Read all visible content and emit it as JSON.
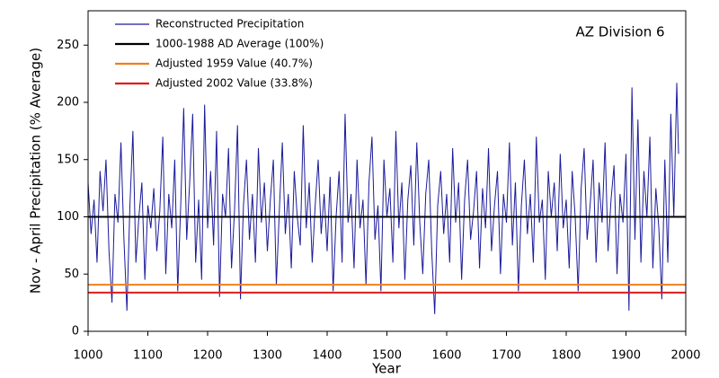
{
  "chart_data": {
    "type": "line",
    "title": "AZ Division 6",
    "x_label": "Year",
    "y_label": "Nov - April Precipitation (% Average)",
    "xlim": [
      1000,
      2000
    ],
    "ylim": [
      0,
      280
    ],
    "xticks": [
      1000,
      1100,
      1200,
      1300,
      1400,
      1500,
      1600,
      1700,
      1800,
      1900,
      2000
    ],
    "yticks": [
      0,
      50,
      100,
      150,
      200,
      250
    ],
    "legend": "upper left",
    "series": [
      {
        "name": "Reconstructed Precipitation",
        "color": "#1a1a9a",
        "x": [
          1000,
          1005,
          1010,
          1015,
          1020,
          1025,
          1030,
          1035,
          1040,
          1045,
          1050,
          1055,
          1060,
          1065,
          1070,
          1075,
          1080,
          1085,
          1090,
          1095,
          1100,
          1105,
          1110,
          1115,
          1120,
          1125,
          1130,
          1135,
          1140,
          1145,
          1150,
          1155,
          1160,
          1165,
          1170,
          1175,
          1180,
          1185,
          1190,
          1195,
          1200,
          1205,
          1210,
          1215,
          1220,
          1225,
          1230,
          1235,
          1240,
          1245,
          1250,
          1255,
          1260,
          1265,
          1270,
          1275,
          1280,
          1285,
          1290,
          1295,
          1300,
          1305,
          1310,
          1315,
          1320,
          1325,
          1330,
          1335,
          1340,
          1345,
          1350,
          1355,
          1360,
          1365,
          1370,
          1375,
          1380,
          1385,
          1390,
          1395,
          1400,
          1405,
          1410,
          1415,
          1420,
          1425,
          1430,
          1435,
          1440,
          1445,
          1450,
          1455,
          1460,
          1465,
          1470,
          1475,
          1480,
          1485,
          1490,
          1495,
          1500,
          1505,
          1510,
          1515,
          1520,
          1525,
          1530,
          1535,
          1540,
          1545,
          1550,
          1555,
          1560,
          1565,
          1570,
          1575,
          1580,
          1585,
          1590,
          1595,
          1600,
          1605,
          1610,
          1615,
          1620,
          1625,
          1630,
          1635,
          1640,
          1645,
          1650,
          1655,
          1660,
          1665,
          1670,
          1675,
          1680,
          1685,
          1690,
          1695,
          1700,
          1705,
          1710,
          1715,
          1720,
          1725,
          1730,
          1735,
          1740,
          1745,
          1750,
          1755,
          1760,
          1765,
          1770,
          1775,
          1780,
          1785,
          1790,
          1795,
          1800,
          1805,
          1810,
          1815,
          1820,
          1825,
          1830,
          1835,
          1840,
          1845,
          1850,
          1855,
          1860,
          1865,
          1870,
          1875,
          1880,
          1885,
          1890,
          1895,
          1900,
          1905,
          1910,
          1915,
          1920,
          1925,
          1930,
          1935,
          1940,
          1945,
          1950,
          1955,
          1960,
          1965,
          1970,
          1975,
          1980,
          1985,
          1988
        ],
        "values": [
          130,
          85,
          115,
          60,
          140,
          105,
          150,
          70,
          25,
          120,
          95,
          165,
          80,
          18,
          110,
          175,
          60,
          100,
          130,
          45,
          110,
          90,
          125,
          70,
          105,
          170,
          50,
          120,
          90,
          150,
          35,
          110,
          195,
          80,
          130,
          190,
          60,
          115,
          45,
          198,
          90,
          140,
          75,
          175,
          30,
          120,
          100,
          160,
          55,
          105,
          180,
          28,
          110,
          150,
          80,
          120,
          60,
          160,
          95,
          130,
          70,
          115,
          150,
          40,
          105,
          165,
          85,
          120,
          55,
          140,
          100,
          75,
          180,
          90,
          130,
          60,
          110,
          150,
          85,
          120,
          70,
          135,
          35,
          100,
          140,
          60,
          190,
          95,
          120,
          55,
          150,
          90,
          115,
          40,
          130,
          170,
          80,
          110,
          35,
          150,
          100,
          125,
          60,
          175,
          90,
          130,
          45,
          115,
          145,
          75,
          165,
          95,
          50,
          120,
          150,
          70,
          15,
          110,
          140,
          85,
          120,
          60,
          160,
          95,
          130,
          45,
          115,
          150,
          80,
          105,
          140,
          55,
          125,
          90,
          160,
          70,
          110,
          140,
          50,
          120,
          95,
          165,
          75,
          130,
          35,
          110,
          150,
          85,
          120,
          60,
          170,
          95,
          115,
          45,
          140,
          100,
          130,
          70,
          155,
          90,
          115,
          55,
          140,
          100,
          35,
          125,
          160,
          80,
          110,
          150,
          60,
          130,
          95,
          165,
          70,
          115,
          145,
          50,
          120,
          95,
          155,
          18,
          213,
          80,
          185,
          60,
          140,
          100,
          170,
          55,
          125,
          90,
          28,
          150,
          60,
          190,
          100,
          217,
          155
        ]
      },
      {
        "name": "1000-1988 AD Average (100%)",
        "color": "#000000",
        "x": [
          1000,
          2000
        ],
        "values": [
          100,
          100
        ]
      },
      {
        "name": "Adjusted 1959 Value  (40.7%)",
        "color": "#f07f1e",
        "x": [
          1000,
          2000
        ],
        "values": [
          40.7,
          40.7
        ]
      },
      {
        "name": "Adjusted 2002 Value  (33.8%)",
        "color": "#e01b1b",
        "x": [
          1000,
          2000
        ],
        "values": [
          33.8,
          33.8
        ]
      }
    ]
  }
}
